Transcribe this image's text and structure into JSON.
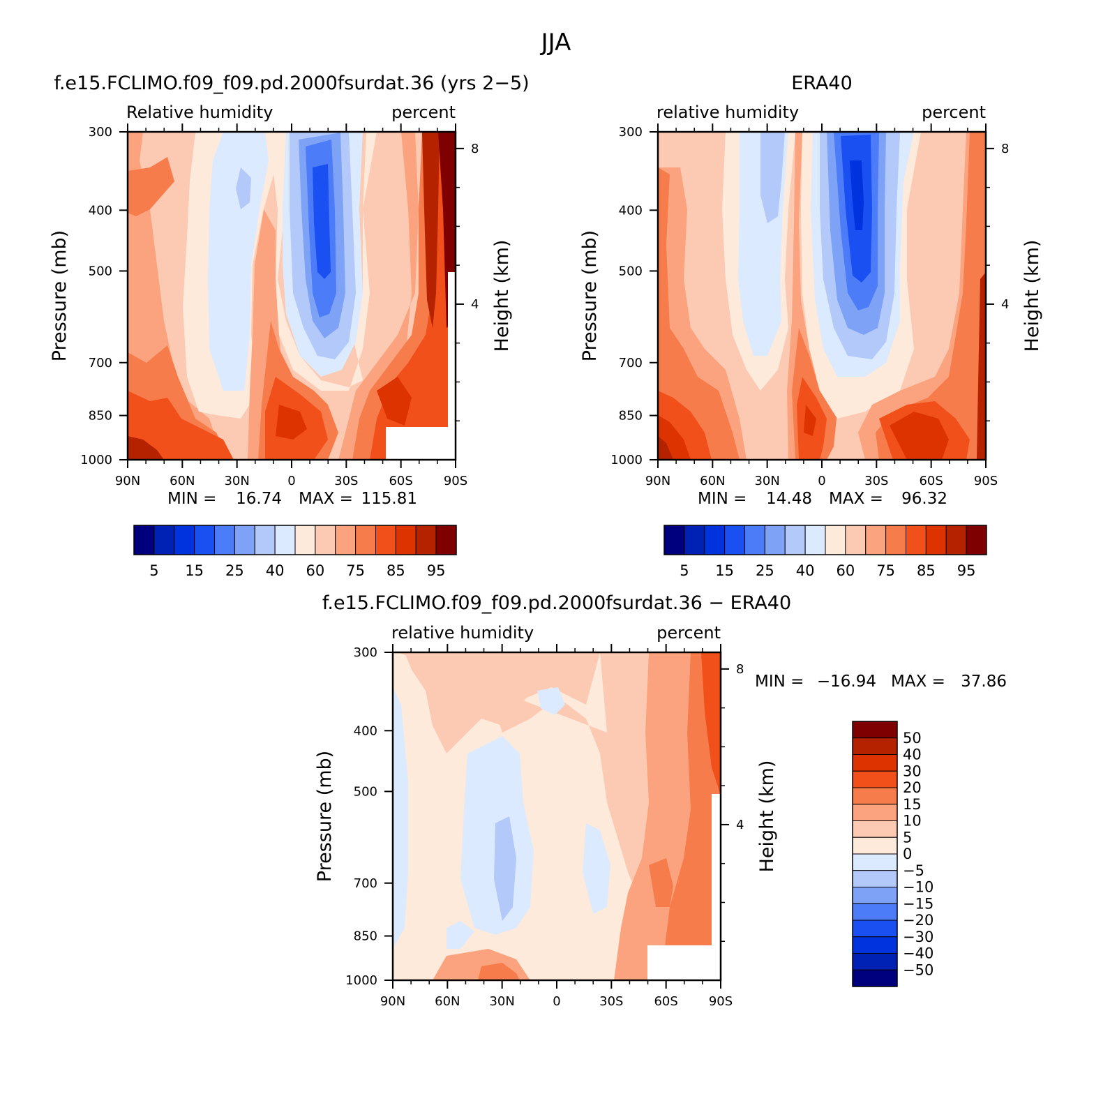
{
  "figure": {
    "title": "JJA"
  },
  "colors": {
    "abs_levels": [
      "#00007f",
      "#0022b4",
      "#0033dd",
      "#1a4ff2",
      "#4c7cf7",
      "#7ea3f6",
      "#b2c9fa",
      "#dbeafe",
      "#feeadb",
      "#fcc9b2",
      "#fba37e",
      "#f77c4c",
      "#f2501a",
      "#dd3300",
      "#b42200",
      "#7f0000"
    ],
    "diff_levels": [
      "#00007f",
      "#0022b4",
      "#0033dd",
      "#1a4ff2",
      "#4c7cf7",
      "#7ea3f6",
      "#b2c9fa",
      "#dbeafe",
      "#feeadb",
      "#fcc9b2",
      "#fba37e",
      "#f77c4c",
      "#f2501a",
      "#dd3300",
      "#b42200",
      "#7f0000"
    ]
  },
  "chart_data": [
    {
      "type": "heatmap",
      "title": "f.e15.FCLIMO.f09_f09.pd.2000fsurdat.36 (yrs 2−5)",
      "left_label": "Relative  humidity",
      "right_label": "percent",
      "ylabel": "Pressure  (mb)",
      "ylabel_right": "Height  (km)",
      "x_ticks": [
        "90N",
        "60N",
        "30N",
        "0",
        "30S",
        "60S",
        "90S"
      ],
      "x_values": [
        90,
        60,
        30,
        0,
        -30,
        -60,
        -90
      ],
      "y_ticks": [
        "300",
        "400",
        "500",
        "700",
        "850",
        "1000"
      ],
      "y_values": [
        300,
        400,
        500,
        700,
        850,
        1000
      ],
      "y_scale": "log",
      "ylim": [
        1000,
        300
      ],
      "height_ticks": [
        "8",
        "4"
      ],
      "height_values": [
        8,
        4
      ],
      "stats": {
        "min_label": "MIN  =",
        "min": "16.74",
        "max_label": "MAX  =",
        "max": "115.81"
      },
      "colorbar": {
        "orientation": "horizontal",
        "tick_labels": [
          "5",
          "15",
          "25",
          "40",
          "60",
          "75",
          "85",
          "95"
        ],
        "levels": [
          5,
          10,
          15,
          20,
          25,
          30,
          40,
          50,
          60,
          65,
          70,
          75,
          80,
          85,
          90,
          95
        ]
      }
    },
    {
      "type": "heatmap",
      "title": "ERA40",
      "left_label": "relative  humidity",
      "right_label": "percent",
      "ylabel": "Pressure  (mb)",
      "ylabel_right": "Height  (km)",
      "x_ticks": [
        "90N",
        "60N",
        "30N",
        "0",
        "30S",
        "60S",
        "90S"
      ],
      "x_values": [
        90,
        60,
        30,
        0,
        -30,
        -60,
        -90
      ],
      "y_ticks": [
        "300",
        "400",
        "500",
        "700",
        "850",
        "1000"
      ],
      "y_values": [
        300,
        400,
        500,
        700,
        850,
        1000
      ],
      "y_scale": "log",
      "ylim": [
        1000,
        300
      ],
      "height_ticks": [
        "8",
        "4"
      ],
      "height_values": [
        8,
        4
      ],
      "stats": {
        "min_label": "MIN  =",
        "min": "14.48",
        "max_label": "MAX  =",
        "max": "96.32"
      },
      "colorbar": {
        "orientation": "horizontal",
        "tick_labels": [
          "5",
          "15",
          "25",
          "40",
          "60",
          "75",
          "85",
          "95"
        ],
        "levels": [
          5,
          10,
          15,
          20,
          25,
          30,
          40,
          50,
          60,
          65,
          70,
          75,
          80,
          85,
          90,
          95
        ]
      }
    },
    {
      "type": "heatmap",
      "title": "f.e15.FCLIMO.f09_f09.pd.2000fsurdat.36  −  ERA40",
      "left_label": "relative  humidity",
      "right_label": "percent",
      "ylabel": "Pressure  (mb)",
      "ylabel_right": "Height  (km)",
      "x_ticks": [
        "90N",
        "60N",
        "30N",
        "0",
        "30S",
        "60S",
        "90S"
      ],
      "x_values": [
        90,
        60,
        30,
        0,
        -30,
        -60,
        -90
      ],
      "y_ticks": [
        "300",
        "400",
        "500",
        "700",
        "850",
        "1000"
      ],
      "y_values": [
        300,
        400,
        500,
        700,
        850,
        1000
      ],
      "y_scale": "log",
      "ylim": [
        1000,
        300
      ],
      "height_ticks": [
        "8",
        "4"
      ],
      "height_values": [
        8,
        4
      ],
      "stats": {
        "min_label": "MIN  =",
        "min": "−16.94",
        "max_label": "MAX  =",
        "max": "37.86"
      },
      "colorbar": {
        "orientation": "vertical",
        "tick_labels": [
          "50",
          "40",
          "30",
          "20",
          "15",
          "10",
          "5",
          "0",
          "−5",
          "−10",
          "−15",
          "−20",
          "−30",
          "−40",
          "−50"
        ],
        "levels": [
          -50,
          -40,
          -30,
          -20,
          -15,
          -10,
          -5,
          0,
          5,
          10,
          15,
          20,
          30,
          40,
          50
        ]
      }
    }
  ]
}
